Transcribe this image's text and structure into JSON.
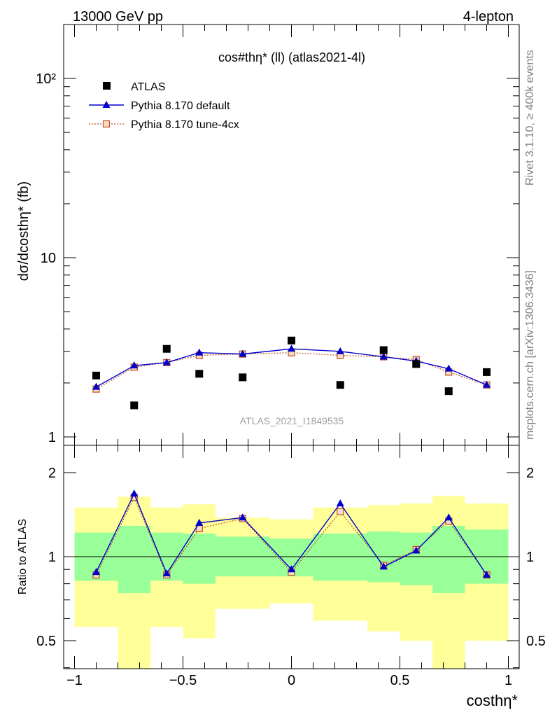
{
  "header": {
    "left": "13000 GeV pp",
    "right": "4-lepton"
  },
  "side_labels": {
    "rivet": "Rivet 3.1.10, ≥ 400k events",
    "site": "mcplots.cern.ch [arXiv:1306.3436]"
  },
  "chart_data": [
    {
      "type": "line",
      "title": "cos#thη* (ll) (atlas2021-4l)",
      "watermark": "ATLAS_2021_I1849535",
      "ylabel": "dσ/dcosthη* (fb)",
      "xlim": [
        -1.05,
        1.05
      ],
      "ylim": [
        1,
        200
      ],
      "log_y": true,
      "y_ticklabels": [
        {
          "value": 1,
          "label": "1"
        },
        {
          "value": 10,
          "label": "10"
        },
        {
          "value": 100,
          "label": "10²"
        }
      ],
      "legend_position": "top-left",
      "series": [
        {
          "name": "ATLAS",
          "marker": "filled-square",
          "color": "#000000",
          "x": [
            -0.9,
            -0.725,
            -0.575,
            -0.425,
            -0.225,
            0.0,
            0.225,
            0.425,
            0.575,
            0.725,
            0.9
          ],
          "y": [
            2.2,
            1.5,
            3.1,
            2.25,
            2.15,
            3.45,
            1.95,
            3.05,
            2.55,
            1.8,
            2.3
          ]
        },
        {
          "name": "Pythia 8.170 default",
          "marker": "filled-triangle",
          "color": "#0000cc",
          "line": "solid",
          "x": [
            -0.9,
            -0.725,
            -0.575,
            -0.425,
            -0.225,
            0.0,
            0.225,
            0.425,
            0.575,
            0.725,
            0.9
          ],
          "y": [
            1.9,
            2.5,
            2.6,
            2.95,
            2.9,
            3.1,
            3.0,
            2.8,
            2.65,
            2.4,
            1.95
          ]
        },
        {
          "name": "Pythia 8.170 tune-4cx",
          "marker": "open-square",
          "color": "#c0501e",
          "line": "dotted",
          "x": [
            -0.9,
            -0.725,
            -0.575,
            -0.425,
            -0.225,
            0.0,
            0.225,
            0.425,
            0.575,
            0.725,
            0.9
          ],
          "y": [
            1.85,
            2.45,
            2.6,
            2.85,
            2.9,
            2.95,
            2.85,
            2.8,
            2.7,
            2.3,
            1.95
          ]
        }
      ]
    },
    {
      "type": "line",
      "ylabel": "Ratio to ATLAS",
      "xlabel": "costhη*",
      "xlim": [
        -1.05,
        1.05
      ],
      "ylim": [
        0.38,
        2.35
      ],
      "log_y": true,
      "x_ticklabels": [
        "−1",
        "−0.5",
        "0",
        "0.5",
        "1"
      ],
      "x_tickvalues": [
        -1,
        -0.5,
        0,
        0.5,
        1
      ],
      "y_ticklabels": [
        {
          "value": 0.5,
          "label": "0.5"
        },
        {
          "value": 1,
          "label": "1"
        },
        {
          "value": 2,
          "label": "2"
        }
      ],
      "bands": {
        "edges": [
          -1.0,
          -0.8,
          -0.65,
          -0.5,
          -0.35,
          -0.1,
          0.1,
          0.35,
          0.5,
          0.65,
          0.8,
          1.0
        ],
        "inner": {
          "color": "#99ff99",
          "low": [
            0.82,
            0.74,
            0.82,
            0.8,
            0.85,
            0.85,
            0.82,
            0.81,
            0.79,
            0.74,
            0.8
          ],
          "high": [
            1.22,
            1.29,
            1.22,
            1.21,
            1.18,
            1.16,
            1.21,
            1.23,
            1.22,
            1.29,
            1.25
          ]
        },
        "outer": {
          "color": "#ffff99",
          "low": [
            0.56,
            0.38,
            0.56,
            0.51,
            0.65,
            0.68,
            0.59,
            0.54,
            0.5,
            0.38,
            0.5
          ],
          "high": [
            1.5,
            1.64,
            1.5,
            1.54,
            1.38,
            1.36,
            1.5,
            1.53,
            1.55,
            1.65,
            1.55
          ]
        }
      },
      "series": [
        {
          "name": "Pythia 8.170 default",
          "color": "#0000cc",
          "x": [
            -0.9,
            -0.725,
            -0.575,
            -0.425,
            -0.225,
            0.0,
            0.225,
            0.425,
            0.575,
            0.725,
            0.9
          ],
          "y": [
            0.88,
            1.68,
            0.87,
            1.32,
            1.38,
            0.9,
            1.55,
            0.92,
            1.05,
            1.38,
            0.86
          ]
        },
        {
          "name": "Pythia 8.170 tune-4cx",
          "color": "#c0501e",
          "x": [
            -0.9,
            -0.725,
            -0.575,
            -0.425,
            -0.225,
            0.0,
            0.225,
            0.425,
            0.575,
            0.725,
            0.9
          ],
          "y": [
            0.86,
            1.63,
            0.86,
            1.26,
            1.37,
            0.88,
            1.45,
            0.93,
            1.06,
            1.34,
            0.86
          ]
        }
      ]
    }
  ]
}
